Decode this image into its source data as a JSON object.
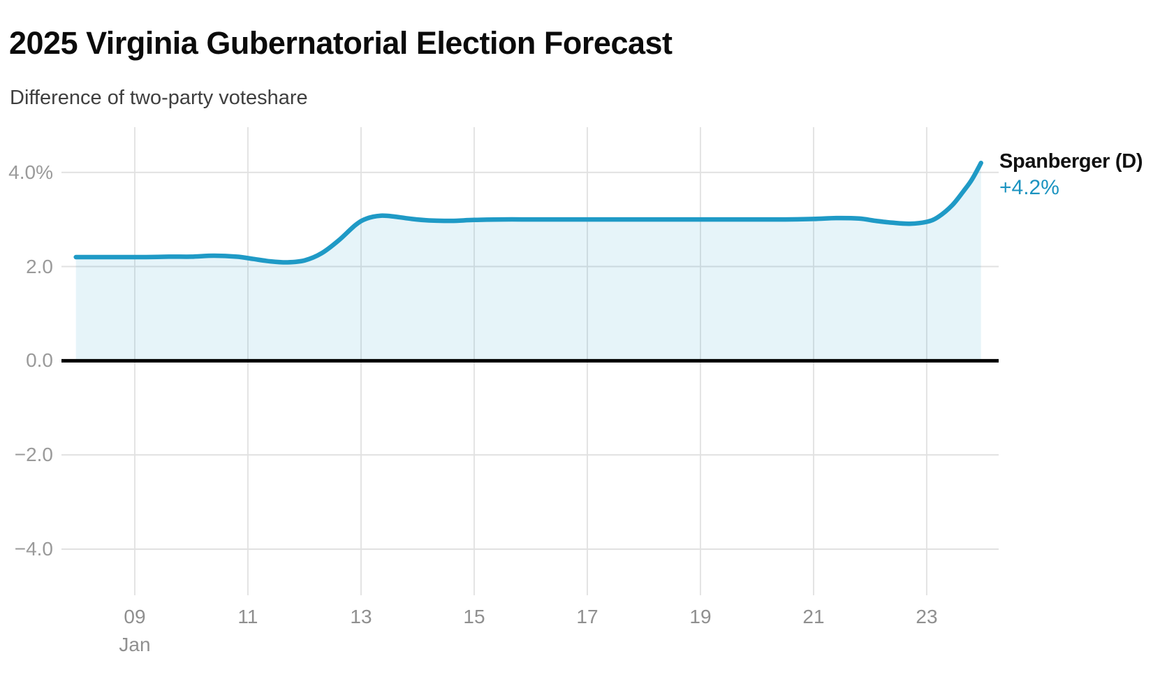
{
  "header": {
    "title": "2025 Virginia Gubernatorial Election Forecast",
    "subtitle": "Difference of two-party voteshare"
  },
  "colors": {
    "line": "#1f9ac6",
    "area_fill": "rgba(31,154,198,0.11)",
    "zero_line": "#000000",
    "grid_horizontal": "#e1e1e1",
    "grid_vertical": "#e4e4e4",
    "axis_text": "#9a9a9a",
    "legend_name_text": "#111111",
    "legend_value_text": "#1b93c0",
    "title_text": "#0b0b0b",
    "subtitle_text": "#3f3f3f"
  },
  "chart_data": {
    "type": "area",
    "title": "2025 Virginia Gubernatorial Election Forecast",
    "subtitle": "Difference of two-party voteshare",
    "x_unit": "day of January 2025",
    "value_suffix": "%",
    "baseline": 0,
    "grid": true,
    "legend_position": "right-end",
    "xlim": [
      7.704,
      24.272
    ],
    "ylim": [
      -4.98,
      4.96
    ],
    "x_ticks": [
      {
        "value": 9,
        "label": "09",
        "sublabel": "Jan"
      },
      {
        "value": 11,
        "label": "11"
      },
      {
        "value": 13,
        "label": "13"
      },
      {
        "value": 15,
        "label": "15"
      },
      {
        "value": 17,
        "label": "17"
      },
      {
        "value": 19,
        "label": "19"
      },
      {
        "value": 21,
        "label": "21"
      },
      {
        "value": 23,
        "label": "23"
      }
    ],
    "y_ticks": [
      {
        "value": 4,
        "label": "4.0%"
      },
      {
        "value": 2,
        "label": "2.0"
      },
      {
        "value": 0,
        "label": "0.0"
      },
      {
        "value": -2,
        "label": "−2.0"
      },
      {
        "value": -4,
        "label": "−4.0"
      }
    ],
    "series": [
      {
        "name": "Spanberger (D)",
        "label": "+4.2%",
        "end_value": 4.2,
        "points": [
          [
            7.96,
            2.2
          ],
          [
            8.4,
            2.2
          ],
          [
            8.8,
            2.2
          ],
          [
            9.2,
            2.2
          ],
          [
            9.6,
            2.21
          ],
          [
            10.0,
            2.21
          ],
          [
            10.4,
            2.23
          ],
          [
            10.8,
            2.21
          ],
          [
            11.1,
            2.16
          ],
          [
            11.4,
            2.11
          ],
          [
            11.7,
            2.09
          ],
          [
            12.0,
            2.13
          ],
          [
            12.3,
            2.28
          ],
          [
            12.6,
            2.55
          ],
          [
            12.9,
            2.88
          ],
          [
            13.1,
            3.02
          ],
          [
            13.35,
            3.08
          ],
          [
            13.6,
            3.06
          ],
          [
            13.9,
            3.01
          ],
          [
            14.2,
            2.98
          ],
          [
            14.6,
            2.97
          ],
          [
            15.0,
            2.99
          ],
          [
            15.5,
            3.0
          ],
          [
            16.0,
            3.0
          ],
          [
            16.5,
            3.0
          ],
          [
            17.0,
            3.0
          ],
          [
            17.5,
            3.0
          ],
          [
            18.0,
            3.0
          ],
          [
            18.5,
            3.0
          ],
          [
            19.0,
            3.0
          ],
          [
            19.5,
            3.0
          ],
          [
            20.0,
            3.0
          ],
          [
            20.5,
            3.0
          ],
          [
            21.0,
            3.01
          ],
          [
            21.4,
            3.03
          ],
          [
            21.8,
            3.02
          ],
          [
            22.1,
            2.97
          ],
          [
            22.4,
            2.93
          ],
          [
            22.7,
            2.91
          ],
          [
            23.0,
            2.95
          ],
          [
            23.2,
            3.05
          ],
          [
            23.45,
            3.3
          ],
          [
            23.65,
            3.6
          ],
          [
            23.8,
            3.85
          ],
          [
            23.96,
            4.2
          ]
        ]
      }
    ]
  }
}
